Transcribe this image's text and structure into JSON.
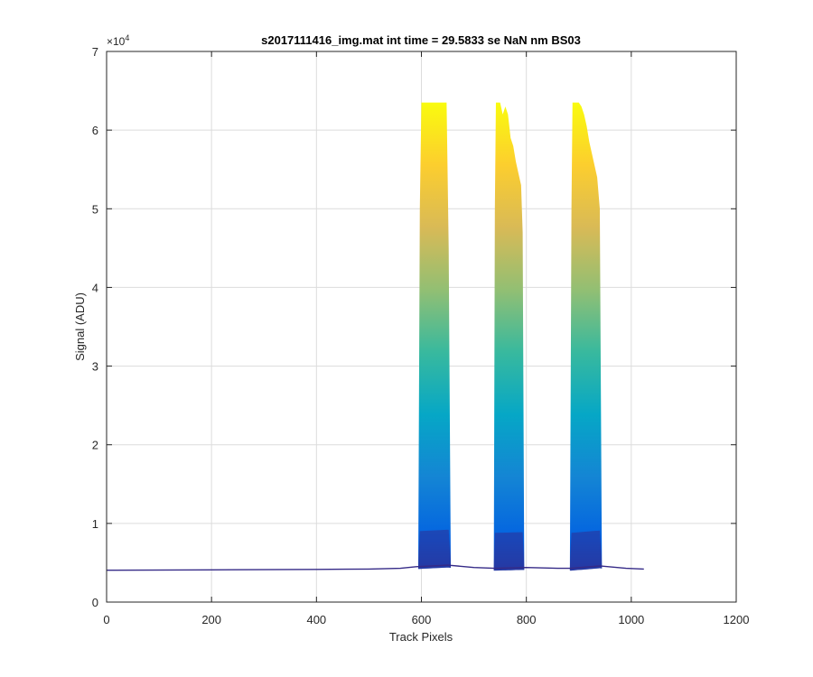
{
  "chart_data": {
    "type": "area",
    "title": "s2017111416_img.mat int time = 29.5833 se  NaN nm BS03",
    "xlabel": "Track Pixels",
    "ylabel": "Signal (ADU)",
    "xlim": [
      0,
      1200
    ],
    "ylim": [
      0,
      70000
    ],
    "x_ticks": [
      0,
      200,
      400,
      600,
      800,
      1000,
      1200
    ],
    "x_tick_labels": [
      "0",
      "200",
      "400",
      "600",
      "800",
      "1000",
      "1200"
    ],
    "y_ticks": [
      0,
      10000,
      20000,
      30000,
      40000,
      50000,
      60000,
      70000
    ],
    "y_tick_labels": [
      "0",
      "1",
      "2",
      "3",
      "4",
      "5",
      "6",
      "7"
    ],
    "y_exponent_base": "×10",
    "y_exponent_power": "4",
    "grid": true,
    "colormap": [
      "#352a87",
      "#0363e1",
      "#1485d4",
      "#06a7c6",
      "#38b99e",
      "#92bf73",
      "#d9ba56",
      "#fcce2e",
      "#f9fb0e"
    ],
    "baseline": {
      "x": [
        0,
        200,
        400,
        500,
        560,
        590,
        650,
        700,
        740,
        800,
        860,
        885,
        940,
        990,
        1024
      ],
      "y": [
        4050,
        4100,
        4150,
        4200,
        4300,
        4500,
        4700,
        4400,
        4300,
        4400,
        4300,
        4300,
        4600,
        4300,
        4200
      ]
    },
    "peaks": [
      {
        "x": [
          594,
          597,
          600,
          640,
          648,
          652,
          656
        ],
        "top": [
          4500,
          50000,
          63500,
          63500,
          63500,
          45000,
          4700
        ]
      },
      {
        "x": [
          738,
          740,
          742,
          750,
          755,
          760,
          765,
          770,
          775,
          780,
          785,
          790,
          793,
          796
        ],
        "top": [
          4300,
          50000,
          63500,
          63500,
          62000,
          63000,
          62000,
          59000,
          58000,
          56000,
          54500,
          53000,
          47000,
          4400
        ]
      },
      {
        "x": [
          883,
          886,
          888,
          900,
          905,
          910,
          915,
          920,
          925,
          930,
          935,
          940,
          944
        ],
        "top": [
          4300,
          50000,
          63500,
          63500,
          63000,
          62000,
          60500,
          58500,
          57000,
          55500,
          54000,
          50000,
          4600
        ]
      }
    ]
  }
}
